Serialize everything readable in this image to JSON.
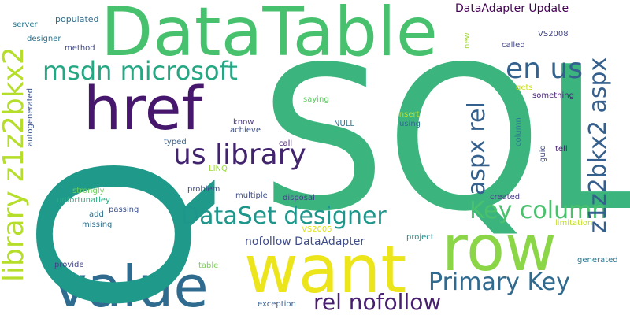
{
  "words": [
    {
      "text": "SQL",
      "color": "#3bb57d"
    },
    {
      "text": "DataTable",
      "color": "#47c16e"
    },
    {
      "text": "row",
      "color": "#8bd646"
    },
    {
      "text": "want",
      "color": "#ece51b"
    },
    {
      "text": "value",
      "color": "#2f6b8e"
    },
    {
      "text": "href",
      "color": "#46176c"
    },
    {
      "text": "Q",
      "color": "#1f998a"
    },
    {
      "text": "library z1z2bkx2",
      "color": "#b5de2b"
    },
    {
      "text": "msdn microsoft",
      "color": "#26a784"
    },
    {
      "text": "us library",
      "color": "#42236e"
    },
    {
      "text": "DataSet designer",
      "color": "#1f968b"
    },
    {
      "text": "Key column",
      "color": "#4ac16d"
    },
    {
      "text": "en us",
      "color": "#32628d"
    },
    {
      "text": "aspx rel",
      "color": "#34608d"
    },
    {
      "text": "z1z2bkx2 aspx",
      "color": "#355f8d"
    },
    {
      "text": "Primary Key",
      "color": "#306a8e"
    },
    {
      "text": "rel nofollow",
      "color": "#481f70"
    },
    {
      "text": "nofollow DataAdapter",
      "color": "#3e4b89"
    },
    {
      "text": "DataAdapter Update",
      "color": "#440154"
    },
    {
      "text": "server",
      "color": "#2a788e"
    },
    {
      "text": "populated",
      "color": "#2e6d8e"
    },
    {
      "text": "designer",
      "color": "#2c738e"
    },
    {
      "text": "method",
      "color": "#3f4889"
    },
    {
      "text": "autogenerated",
      "color": "#3b518b"
    },
    {
      "text": "new",
      "color": "#a2da37"
    },
    {
      "text": "VS2008",
      "color": "#404387"
    },
    {
      "text": "called",
      "color": "#404588"
    },
    {
      "text": "gets",
      "color": "#c8e020"
    },
    {
      "text": "something",
      "color": "#482576"
    },
    {
      "text": "saying",
      "color": "#5ec962"
    },
    {
      "text": "insert",
      "color": "#bddf26"
    },
    {
      "text": "know",
      "color": "#46307e"
    },
    {
      "text": "achieve",
      "color": "#3c4f8a"
    },
    {
      "text": "NULL",
      "color": "#2c728e"
    },
    {
      "text": "using",
      "color": "#2f6b8e"
    },
    {
      "text": "column",
      "color": "#2a788e"
    },
    {
      "text": "guid",
      "color": "#3e4989"
    },
    {
      "text": "typed",
      "color": "#33638d"
    },
    {
      "text": "call",
      "color": "#482173"
    },
    {
      "text": "tell",
      "color": "#481f70"
    },
    {
      "text": "LINQ",
      "color": "#9bd93c"
    },
    {
      "text": "strongly",
      "color": "#6ccd5a"
    },
    {
      "text": "problem",
      "color": "#3e4a89"
    },
    {
      "text": "multiple",
      "color": "#3d4d8a"
    },
    {
      "text": "disposal",
      "color": "#414287"
    },
    {
      "text": "created",
      "color": "#443a83"
    },
    {
      "text": "unfortunatley",
      "color": "#26ad81"
    },
    {
      "text": "add",
      "color": "#2d708e"
    },
    {
      "text": "passing",
      "color": "#3b518b"
    },
    {
      "text": "missing",
      "color": "#2d708e"
    },
    {
      "text": "VS2005",
      "color": "#dde318"
    },
    {
      "text": "limitation",
      "color": "#c0df25"
    },
    {
      "text": "project",
      "color": "#228d8d"
    },
    {
      "text": "provide",
      "color": "#404588"
    },
    {
      "text": "table",
      "color": "#7ad151"
    },
    {
      "text": "generated",
      "color": "#2a788e"
    },
    {
      "text": "exception",
      "color": "#365d8d"
    }
  ]
}
